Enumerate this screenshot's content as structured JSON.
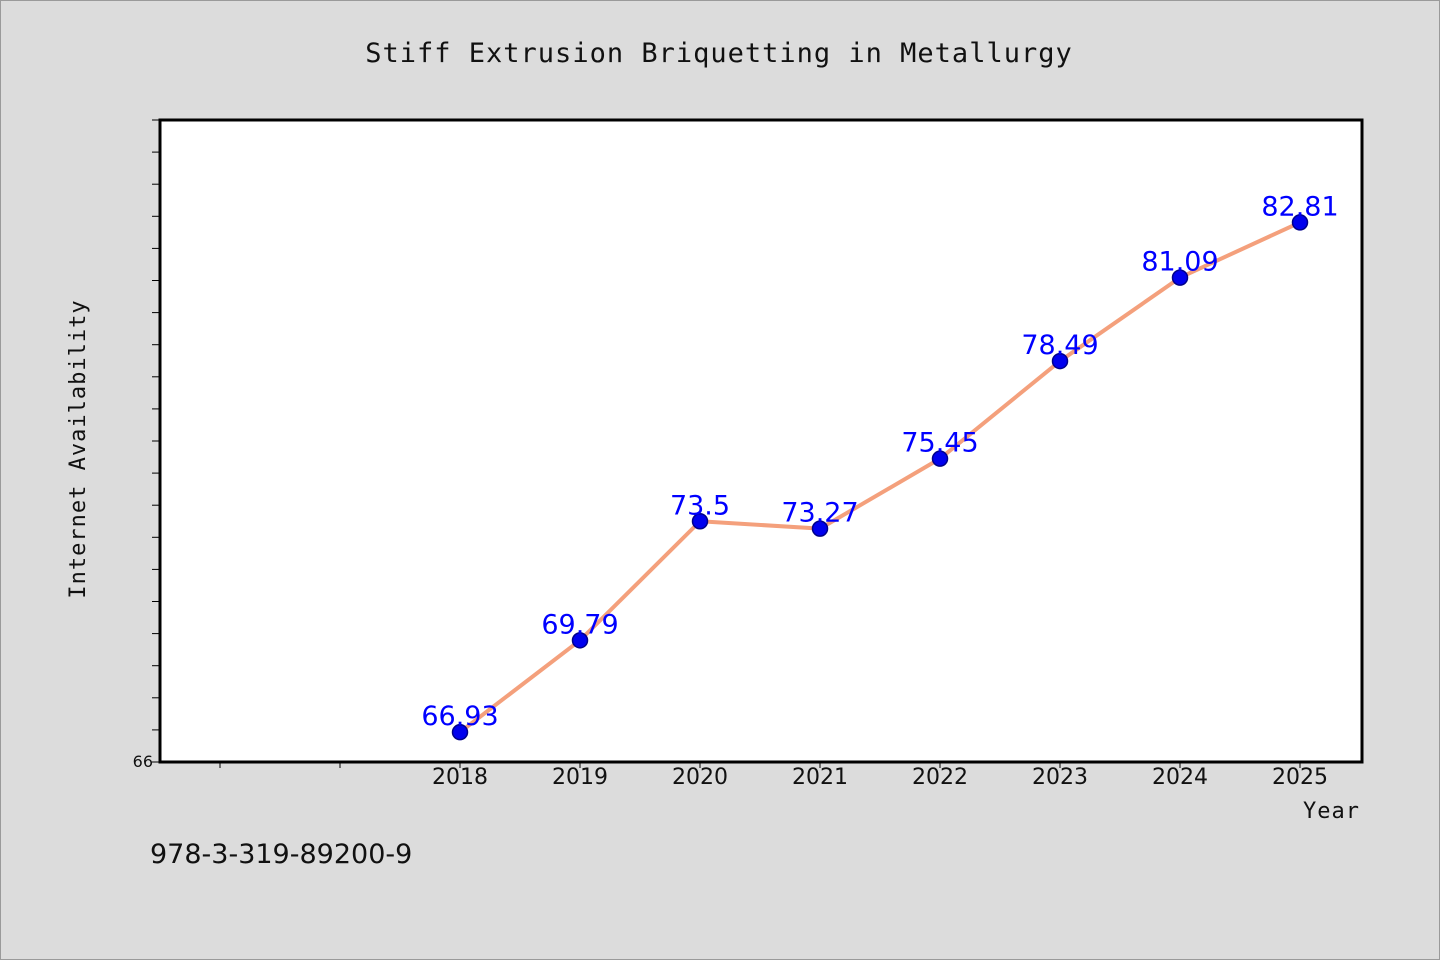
{
  "chart_data": {
    "type": "line",
    "title": "Stiff Extrusion Briquetting in Metallurgy",
    "xlabel": "Year",
    "ylabel": "Internet Availability",
    "categories": [
      "2018",
      "2019",
      "2020",
      "2021",
      "2022",
      "2023",
      "2024",
      "2025"
    ],
    "series": [
      {
        "values": [
          66.93,
          69.79,
          73.5,
          73.27,
          75.45,
          78.49,
          81.09,
          82.81
        ],
        "labels": [
          "66.93",
          "69.79",
          "73.5",
          "73.27",
          "75.45",
          "78.49",
          "81.09",
          "82.81"
        ]
      }
    ],
    "ylim": [
      66,
      86
    ],
    "y_tick_labels": [
      "66"
    ],
    "grid": false,
    "colors": {
      "line": "#f4a07c",
      "marker": "#0000ee",
      "marker_edge": "#00008b",
      "data_label": "#0000ff",
      "plot_background": "#ffffff",
      "figure_background": "#dcdcdc"
    }
  },
  "footer": {
    "isbn": "978-3-319-89200-9"
  }
}
